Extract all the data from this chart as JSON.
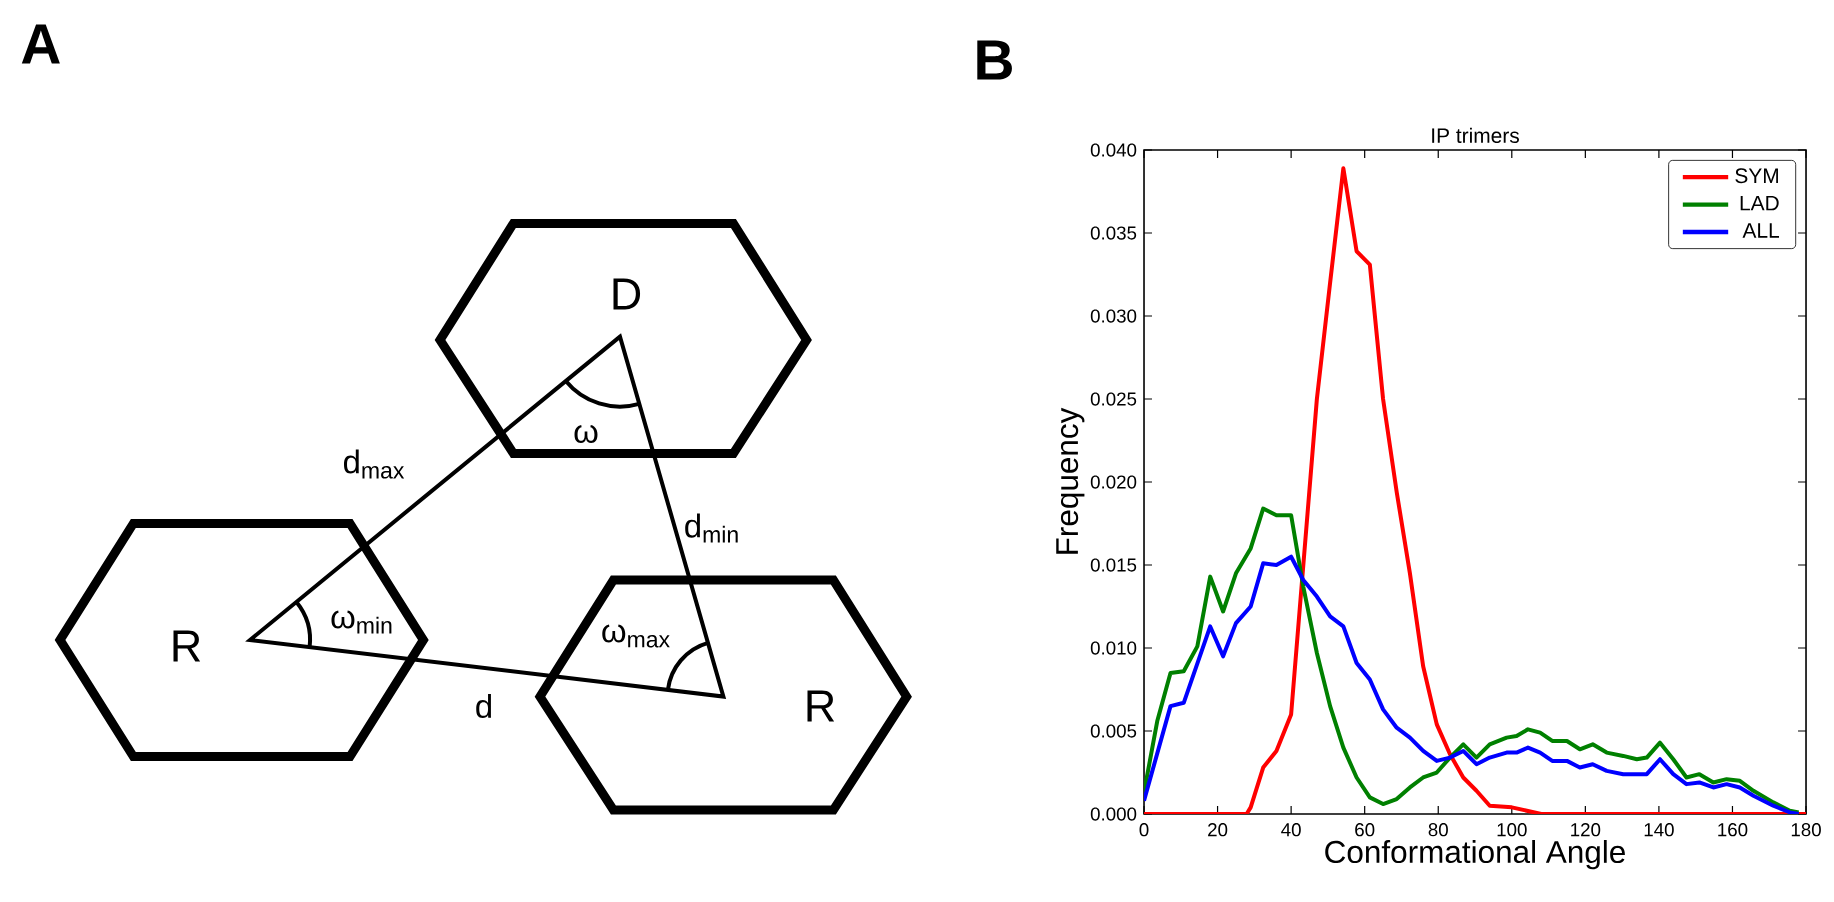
{
  "chart_data": [
    {
      "type": "other",
      "title": "A",
      "annotations": [
        "D",
        "R",
        "R",
        "d$_{max}$",
        "ω",
        "d$_{min}$",
        "ω$_{min}$",
        "ω$_{max}$",
        "d",
        "B"
      ]
    },
    {
      "type": "line",
      "title": "IP trimers",
      "xlabel": "Conformational Angle",
      "ylabel": "Frequency",
      "xlim": [
        0,
        180
      ],
      "ylim": [
        0,
        0.04
      ],
      "xticks": [
        0,
        20,
        40,
        60,
        80,
        100,
        120,
        140,
        160,
        180
      ],
      "yticks": [
        {
          "value": 0,
          "label": "0.000"
        },
        {
          "value": 0.005,
          "label": "0.005"
        },
        {
          "value": 0.01,
          "label": "0.010"
        },
        {
          "value": 0.015,
          "label": "0.015"
        },
        {
          "value": 0.02,
          "label": "0.020"
        },
        {
          "value": 0.025,
          "label": "0.025"
        },
        {
          "value": 0.03,
          "label": "0.030"
        },
        {
          "value": 0.035,
          "label": "0.035"
        },
        {
          "value": 0.04,
          "label": "0.040"
        }
      ],
      "legend": "top right",
      "grid": false,
      "series": [
        {
          "name": "SYM",
          "color": "#ff0000",
          "x": [
            0,
            27.9,
            29,
            32.4,
            36,
            40,
            47,
            50.6,
            54.2,
            57.8,
            61.4,
            65,
            68.7,
            72.3,
            75.9,
            79.6,
            83.2,
            86.8,
            90.4,
            94,
            100,
            108,
            180
          ],
          "values": [
            0,
            0,
            0.0004,
            0.0028,
            0.0038,
            0.006,
            0.025,
            0.032,
            0.0389,
            0.0339,
            0.0331,
            0.025,
            0.0194,
            0.0145,
            0.0089,
            0.0054,
            0.0036,
            0.0022,
            0.0014,
            0.0005,
            0.0004,
            0,
            0
          ]
        },
        {
          "name": "LAD",
          "color": "#008000",
          "x": [
            0,
            3.6,
            7.2,
            10.8,
            14.5,
            18,
            21.5,
            25,
            29,
            32.4,
            36,
            40,
            43.3,
            47,
            50.6,
            54.2,
            57.8,
            61.4,
            65,
            68.7,
            72.3,
            75.9,
            79.6,
            83.2,
            86.8,
            90.4,
            94,
            98.6,
            101.3,
            104.4,
            107.7,
            111,
            115,
            118.5,
            122,
            125.8,
            130.3,
            134,
            136.7,
            140.3,
            143.9,
            147.5,
            151,
            154.8,
            158.4,
            162,
            165.7,
            171.1,
            175.6,
            178
          ],
          "values": [
            0.0013,
            0.0056,
            0.0085,
            0.0086,
            0.0101,
            0.0143,
            0.0122,
            0.0145,
            0.016,
            0.0184,
            0.018,
            0.018,
            0.0137,
            0.0097,
            0.0065,
            0.004,
            0.0022,
            0.001,
            0.0006,
            0.0009,
            0.0016,
            0.0022,
            0.0025,
            0.0034,
            0.0042,
            0.0034,
            0.0042,
            0.0046,
            0.0047,
            0.0051,
            0.0049,
            0.0044,
            0.0044,
            0.0039,
            0.0042,
            0.0037,
            0.0035,
            0.0033,
            0.0034,
            0.0043,
            0.0033,
            0.0022,
            0.0024,
            0.0019,
            0.0021,
            0.002,
            0.0014,
            0.0007,
            0.0002,
            0.0001
          ]
        },
        {
          "name": "ALL",
          "color": "#0000ff",
          "x": [
            0,
            7.2,
            10.8,
            18,
            21.5,
            25,
            29,
            32.4,
            36,
            40,
            43.3,
            47,
            50.6,
            54.2,
            57.8,
            61.4,
            65,
            68.7,
            72.3,
            75.9,
            79.6,
            83.2,
            86.8,
            90.4,
            94,
            98.6,
            101.3,
            104.4,
            107.7,
            111,
            115,
            118.5,
            122,
            125.8,
            130.3,
            136.7,
            140.3,
            143.9,
            147.5,
            151,
            154.8,
            158.4,
            162,
            165.7,
            171.1,
            175.6,
            178
          ],
          "values": [
            0.0008,
            0.0065,
            0.0067,
            0.0113,
            0.0095,
            0.0115,
            0.0125,
            0.0151,
            0.015,
            0.0155,
            0.0141,
            0.0131,
            0.0119,
            0.0113,
            0.0091,
            0.0081,
            0.0063,
            0.0052,
            0.0046,
            0.0038,
            0.0032,
            0.0034,
            0.0038,
            0.003,
            0.0034,
            0.0037,
            0.0037,
            0.004,
            0.0037,
            0.0032,
            0.0032,
            0.0028,
            0.003,
            0.0026,
            0.0024,
            0.0024,
            0.0033,
            0.0024,
            0.0018,
            0.0019,
            0.0016,
            0.0018,
            0.0016,
            0.0011,
            0.0005,
            0.0001,
            0
          ]
        }
      ]
    }
  ]
}
